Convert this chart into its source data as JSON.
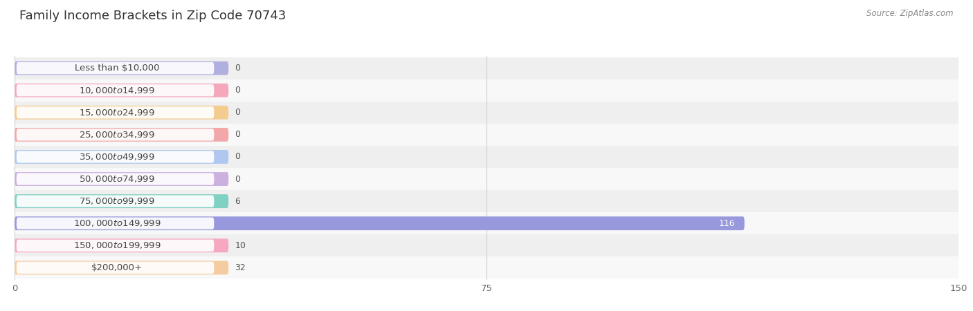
{
  "title": "Family Income Brackets in Zip Code 70743",
  "source": "Source: ZipAtlas.com",
  "categories": [
    "Less than $10,000",
    "$10,000 to $14,999",
    "$15,000 to $24,999",
    "$25,000 to $34,999",
    "$35,000 to $49,999",
    "$50,000 to $74,999",
    "$75,000 to $99,999",
    "$100,000 to $149,999",
    "$150,000 to $199,999",
    "$200,000+"
  ],
  "values": [
    0,
    0,
    0,
    0,
    0,
    0,
    6,
    116,
    10,
    32
  ],
  "bar_colors": [
    "#b0b0e0",
    "#f5a8bc",
    "#f5cc90",
    "#f2a8a8",
    "#b0c8f0",
    "#ccb0e0",
    "#80d0c4",
    "#9898dc",
    "#f5a8c0",
    "#f5ccA0"
  ],
  "bar_colors_light": [
    "#d8d8f0",
    "#fad0dc",
    "#fae4c0",
    "#f8d0d0",
    "#d4e4f8",
    "#e4d4f4",
    "#c0eae4",
    "#c8c8f0",
    "#fad0e0",
    "#fae4c8"
  ],
  "row_bg_colors": [
    "#efefef",
    "#f8f8f8"
  ],
  "xlim": [
    0,
    150
  ],
  "xticks": [
    0,
    75,
    150
  ],
  "title_fontsize": 13,
  "label_fontsize": 9.5,
  "value_fontsize": 9,
  "bar_height": 0.62
}
